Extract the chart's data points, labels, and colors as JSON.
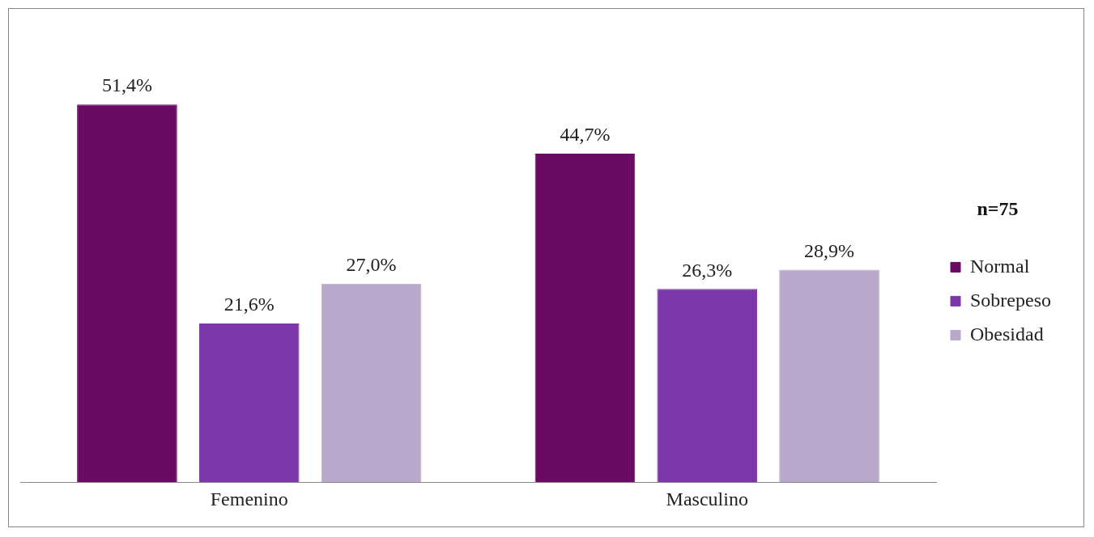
{
  "chart_data": {
    "type": "bar",
    "categories": [
      "Femenino",
      "Masculino"
    ],
    "series": [
      {
        "name": "Normal",
        "color": "#6b0a62",
        "values": [
          51.4,
          44.7
        ],
        "value_labels": [
          "51,4%",
          "44,7%"
        ]
      },
      {
        "name": "Sobrepeso",
        "color": "#7a38a8",
        "values": [
          21.6,
          26.3
        ],
        "value_labels": [
          "21,6%",
          "26,3%"
        ]
      },
      {
        "name": "Obesidad",
        "color": "#b9a8cc",
        "values": [
          27.0,
          28.9
        ],
        "value_labels": [
          "27,0%",
          "28,9%"
        ]
      }
    ],
    "legend_title": "n=75",
    "legend": "right",
    "tick_labels": "x",
    "grid": false
  }
}
